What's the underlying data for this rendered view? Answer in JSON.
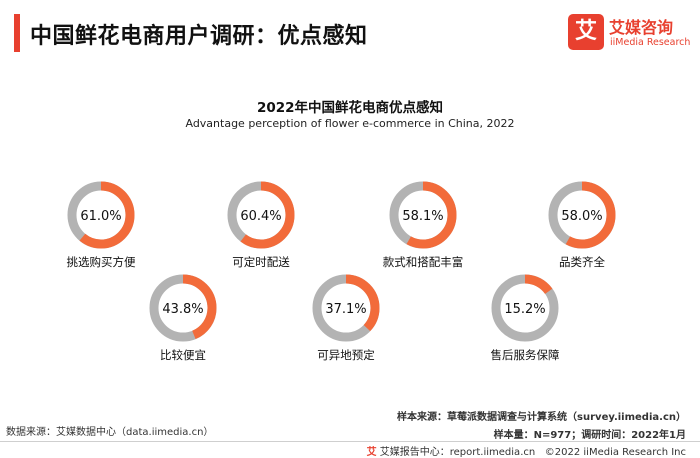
{
  "header": {
    "title": "中国鲜花电商用户调研：优点感知",
    "brand_icon_char": "艾",
    "brand_name": "艾媒咨询",
    "brand_en": "iiMedia Research"
  },
  "colors": {
    "accent": "#f26b3a",
    "remainder": "#b3b3b3",
    "brand": "#e8402f"
  },
  "chart_data": {
    "type": "donut",
    "title": "2022年中国鲜花电商优点感知",
    "subtitle": "Advantage perception of flower e-commerce in China, 2022",
    "unit": "%",
    "items": [
      {
        "label": "挑选购买方便",
        "value": 61.0,
        "display": "61.0%"
      },
      {
        "label": "可定时配送",
        "value": 60.4,
        "display": "60.4%"
      },
      {
        "label": "款式和搭配丰富",
        "value": 58.1,
        "display": "58.1%"
      },
      {
        "label": "品类齐全",
        "value": 58.0,
        "display": "58.0%"
      },
      {
        "label": "比较便宜",
        "value": 43.8,
        "display": "43.8%"
      },
      {
        "label": "可异地预定",
        "value": 37.1,
        "display": "37.1%"
      },
      {
        "label": "售后服务保障",
        "value": 15.2,
        "display": "15.2%"
      }
    ]
  },
  "source": {
    "left": "数据来源：艾媒数据中心（data.iimedia.cn）",
    "sample_source": "样本来源：草莓派数据调查与计算系统（survey.iimedia.cn）",
    "sample_info": "样本量：N=977；调研时间：2022年1月"
  },
  "footer": {
    "icon": "艾",
    "report": "艾媒报告中心：report.iimedia.cn",
    "copyright": "©2022  iiMedia Research Inc"
  }
}
